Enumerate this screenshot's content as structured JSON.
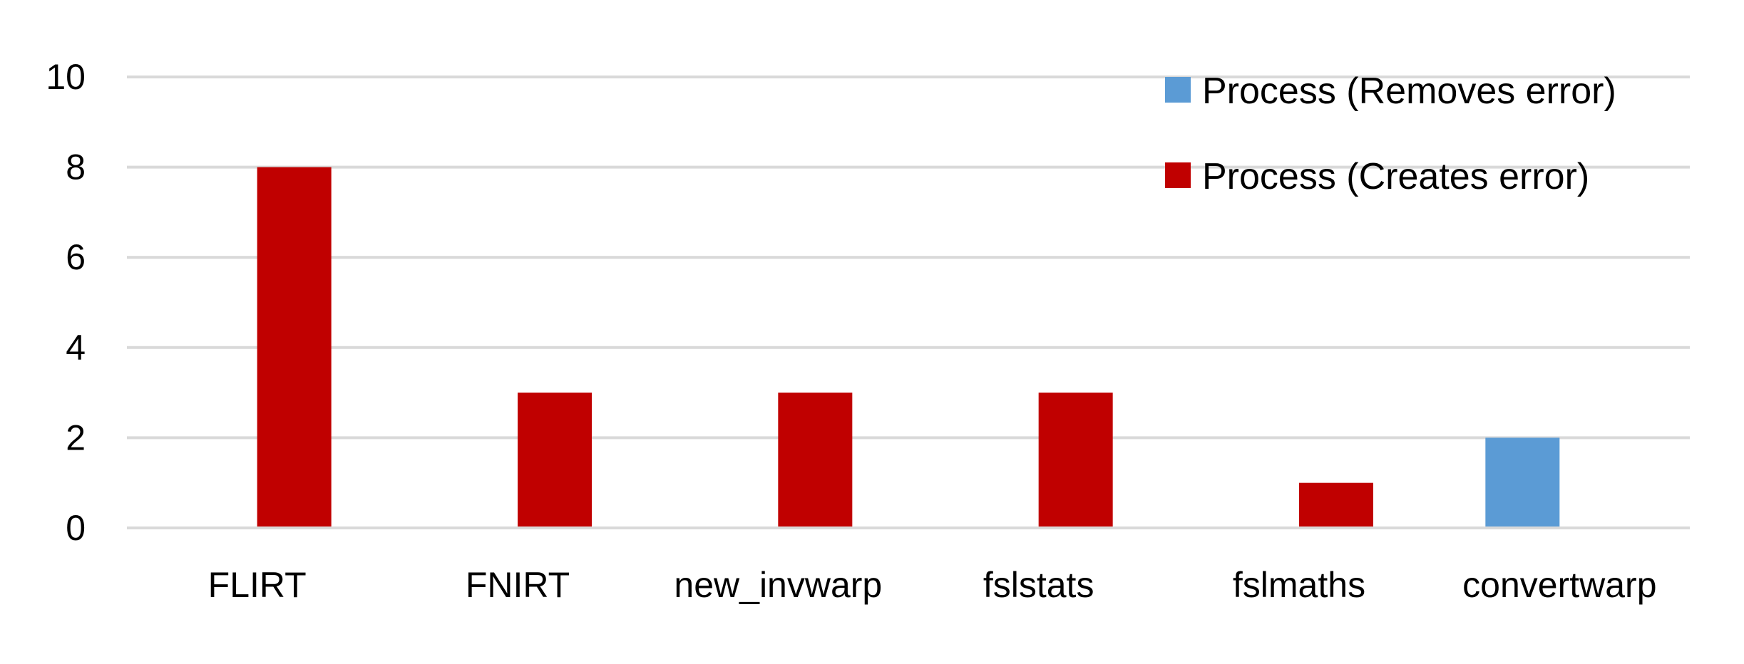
{
  "chart_data": {
    "type": "bar",
    "categories": [
      "FLIRT",
      "FNIRT",
      "new_invwarp",
      "fslstats",
      "fslmaths",
      "convertwarp"
    ],
    "series": [
      {
        "name": "Process (Removes error)",
        "color": "#5B9BD5",
        "values": [
          0,
          0,
          0,
          0,
          0,
          2
        ]
      },
      {
        "name": "Process (Creates error)",
        "color": "#C00000",
        "values": [
          8,
          3,
          3,
          3,
          1,
          0
        ]
      }
    ],
    "ylim": [
      0,
      10
    ],
    "yticks": [
      0,
      2,
      4,
      6,
      8,
      10
    ],
    "title": "",
    "xlabel": "",
    "ylabel": "",
    "grid": true,
    "legend_position": "top-right",
    "gridline_color": "#D9D9D9"
  }
}
